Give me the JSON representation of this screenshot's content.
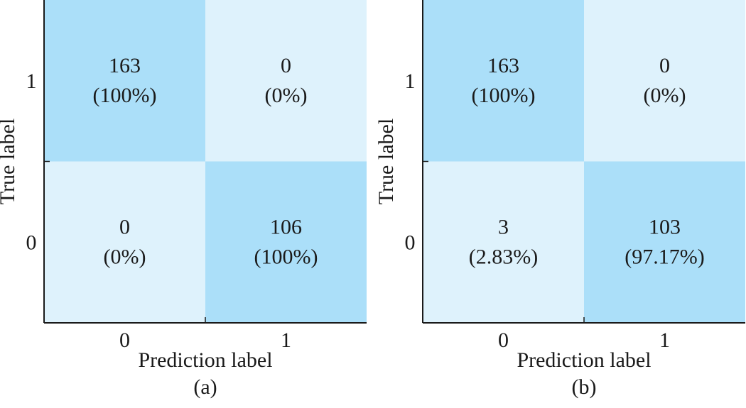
{
  "colors": {
    "high": "#abdff9",
    "low": "#def2fc",
    "axis": "#1a1a1a",
    "text": "#1a1a1a"
  },
  "chart_data": [
    {
      "type": "heatmap",
      "panel_label": "(a)",
      "xlabel": "Prediction label",
      "ylabel": "True label",
      "x_categories": [
        "0",
        "1"
      ],
      "y_categories": [
        "1",
        "0"
      ],
      "cells": [
        {
          "true": "1",
          "pred": "0",
          "count": "163",
          "percent": "(100%)",
          "level": "high"
        },
        {
          "true": "1",
          "pred": "1",
          "count": "0",
          "percent": "(0%)",
          "level": "low"
        },
        {
          "true": "0",
          "pred": "0",
          "count": "0",
          "percent": "(0%)",
          "level": "low"
        },
        {
          "true": "0",
          "pred": "1",
          "count": "106",
          "percent": "(100%)",
          "level": "high"
        }
      ]
    },
    {
      "type": "heatmap",
      "panel_label": "(b)",
      "xlabel": "Prediction label",
      "ylabel": "True label",
      "x_categories": [
        "0",
        "1"
      ],
      "y_categories": [
        "1",
        "0"
      ],
      "cells": [
        {
          "true": "1",
          "pred": "0",
          "count": "163",
          "percent": "(100%)",
          "level": "high"
        },
        {
          "true": "1",
          "pred": "1",
          "count": "0",
          "percent": "(0%)",
          "level": "low"
        },
        {
          "true": "0",
          "pred": "0",
          "count": "3",
          "percent": "(2.83%)",
          "level": "low"
        },
        {
          "true": "0",
          "pred": "1",
          "count": "103",
          "percent": "(97.17%)",
          "level": "high"
        }
      ]
    }
  ]
}
